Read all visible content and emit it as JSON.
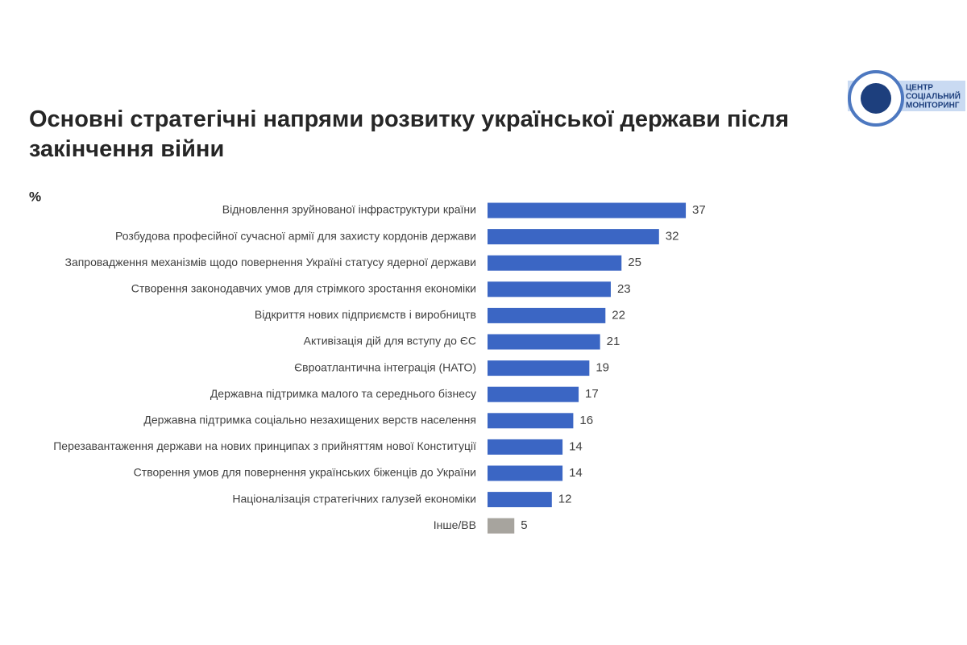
{
  "logo": [
    "ЦЕНТР",
    "СОЦІАЛЬНИЙ",
    "МОНІТОРИНГ"
  ],
  "chart_data": {
    "type": "bar",
    "orientation": "horizontal",
    "title": "Основні стратегічні напрями розвитку української держави після закінчення війни",
    "value_label": "%",
    "categories": [
      "Відновлення зруйнованої інфраструктури країни",
      "Розбудова професійної сучасної армії для захисту кордонів держави",
      "Запровадження механізмів щодо повернення Україні статусу ядерної держави",
      "Створення законодавчих умов для стрімкого зростання економіки",
      "Відкриття нових підприємств і виробництв",
      "Активізація дій для вступу до ЄС",
      "Євроатлантична інтеграція (НАТО)",
      "Державна підтримка малого та середнього бізнесу",
      "Державна підтримка соціально незахищених верств населення",
      "Перезавантаження держави на нових принципах з прийняттям нової Конституції",
      "Створення умов для повернення українських біженців до України",
      "Націоналізація стратегічних галузей економіки",
      "Інше/ВВ"
    ],
    "values": [
      37,
      32,
      25,
      23,
      22,
      21,
      19,
      17,
      16,
      14,
      14,
      12,
      5
    ],
    "colors": [
      "#3b66c4",
      "#3b66c4",
      "#3b66c4",
      "#3b66c4",
      "#3b66c4",
      "#3b66c4",
      "#3b66c4",
      "#3b66c4",
      "#3b66c4",
      "#3b66c4",
      "#3b66c4",
      "#3b66c4",
      "#a7a49e"
    ]
  }
}
